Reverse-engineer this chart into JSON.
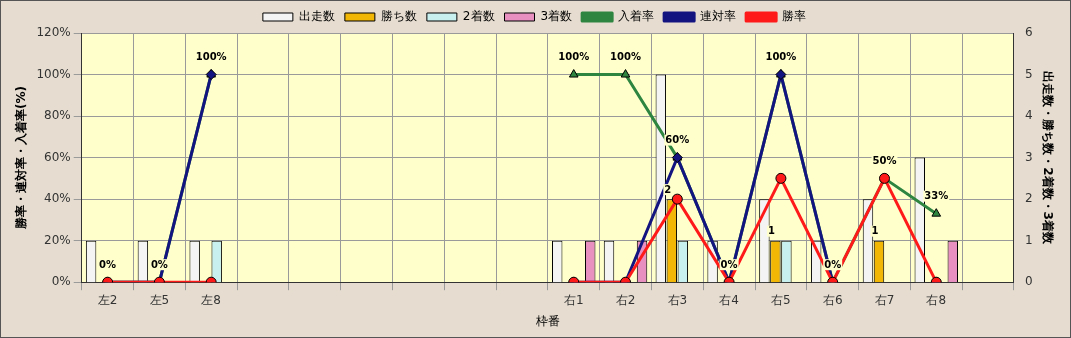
{
  "chart_data": {
    "type": "bar",
    "xlabel": "枠番",
    "ylabel": "勝率・連対率・入着率(%)",
    "y2label": "出走数・勝ち数・2着数・3着数",
    "categories": [
      "左2",
      "左5",
      "左8",
      null,
      null,
      null,
      null,
      null,
      null,
      "右1",
      "右2",
      "右3",
      "右4",
      "右5",
      "右6",
      "右7",
      "右8",
      null
    ],
    "series": [
      {
        "name": "出走数",
        "axis": "y2",
        "color": "#f4f4f4",
        "values": [
          1,
          1,
          1,
          null,
          null,
          null,
          null,
          null,
          null,
          1,
          1,
          5,
          1,
          2,
          1,
          2,
          3,
          null
        ]
      },
      {
        "name": "勝ち数",
        "axis": "y2",
        "color": "#f2b705",
        "values": [
          0,
          0,
          0,
          null,
          null,
          null,
          null,
          null,
          null,
          0,
          0,
          2,
          0,
          1,
          0,
          1,
          0,
          null
        ],
        "value_labels": [
          null,
          null,
          null,
          null,
          null,
          null,
          null,
          null,
          null,
          null,
          null,
          "2",
          null,
          "1",
          null,
          "1",
          null,
          null
        ]
      },
      {
        "name": "2着数",
        "axis": "y2",
        "color": "#c8f0ee",
        "values": [
          0,
          0,
          1,
          null,
          null,
          null,
          null,
          null,
          null,
          0,
          0,
          1,
          0,
          1,
          0,
          0,
          0,
          null
        ]
      },
      {
        "name": "3着数",
        "axis": "y2",
        "color": "#e890c0",
        "values": [
          0,
          0,
          0,
          null,
          null,
          null,
          null,
          null,
          null,
          1,
          1,
          0,
          0,
          0,
          0,
          0,
          1,
          null
        ]
      },
      {
        "name": "入着率",
        "type": "line",
        "marker": "triangle",
        "color": "#2e8540",
        "values": [
          0,
          0,
          100,
          null,
          null,
          null,
          null,
          null,
          null,
          100,
          100,
          60,
          0,
          100,
          0,
          50,
          33,
          null
        ],
        "value_labels": [
          "0%",
          "0%",
          "100%",
          null,
          null,
          null,
          null,
          null,
          null,
          "100%",
          "100%",
          "60%",
          "0%",
          "100%",
          "0%",
          "50%",
          "33%",
          null
        ]
      },
      {
        "name": "連対率",
        "type": "line",
        "marker": "diamond",
        "color": "#141480",
        "values": [
          0,
          0,
          100,
          null,
          null,
          null,
          null,
          null,
          null,
          0,
          0,
          60,
          0,
          100,
          0,
          null,
          0,
          null
        ]
      },
      {
        "name": "勝率",
        "type": "line",
        "marker": "circle",
        "color": "#ff1a1a",
        "values": [
          0,
          0,
          0,
          null,
          null,
          null,
          null,
          null,
          null,
          0,
          0,
          40,
          0,
          50,
          0,
          50,
          0,
          null
        ]
      }
    ],
    "ylim": [
      0,
      120
    ],
    "yticks": [
      {
        "value": 0,
        "label": "0%"
      },
      {
        "value": 20,
        "label": "20%"
      },
      {
        "value": 40,
        "label": "40%"
      },
      {
        "value": 60,
        "label": "60%"
      },
      {
        "value": 80,
        "label": "80%"
      },
      {
        "value": 100,
        "label": "100%"
      },
      {
        "value": 120,
        "label": "120%"
      }
    ],
    "y2lim": [
      0,
      6
    ],
    "y2ticks": [
      0,
      1,
      2,
      3,
      4,
      5,
      6
    ],
    "grid": true,
    "legend": "top"
  }
}
